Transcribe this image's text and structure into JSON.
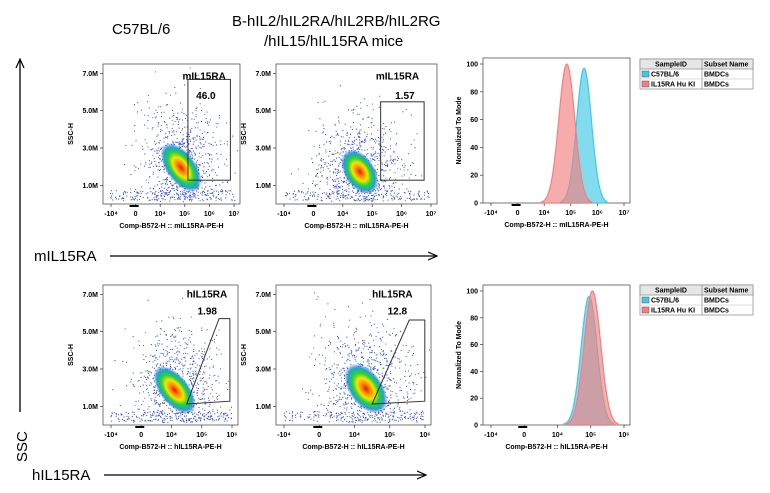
{
  "header": {
    "strain_left": "C57BL/6",
    "strain_right_line1": "B-hIL2/hIL2RA/hIL2RB/hIL2RG",
    "strain_right_line2": "/hIL15/hIL15RA mice"
  },
  "axes": {
    "row1_arrow_label": "mIL15RA",
    "row2_arrow_label": "hIL15RA",
    "vertical_arrow_label": "SSC"
  },
  "chart_data": [
    {
      "type": "scatter",
      "panel": "row1-dot-wt",
      "gate_label": "mIL15RA",
      "gate_value": "46.0",
      "xlabel": "Comp-B572-H :: mIL15RA-PE-H",
      "ylabel": "SSC-H",
      "xticks": [
        "-10⁴",
        "0",
        "10⁴",
        "10⁵",
        "10⁶",
        "10⁷"
      ],
      "yticks": [
        "1.0M",
        "3.0M",
        "5.0M",
        "7.0M"
      ],
      "ylim": [
        0,
        7.5
      ]
    },
    {
      "type": "scatter",
      "panel": "row1-dot-ki",
      "gate_label": "mIL15RA",
      "gate_value": "1.57",
      "xlabel": "Comp-B572-H :: mIL15RA-PE-H",
      "ylabel": "SSC-H",
      "xticks": [
        "-10⁴",
        "0",
        "10⁴",
        "10⁵",
        "10⁶",
        "10⁷"
      ],
      "yticks": [
        "1.0M",
        "3.0M",
        "5.0M",
        "7.0M"
      ],
      "ylim": [
        0,
        7.5
      ]
    },
    {
      "type": "area",
      "panel": "row1-histogram",
      "xlabel": "Comp-B572-H :: mIL15RA-PE-H",
      "ylabel": "Normalized To Mode",
      "xticks": [
        "-10⁴",
        "0",
        "10⁴",
        "10⁵",
        "10⁶",
        "10⁷"
      ],
      "yticks": [
        "0",
        "20",
        "40",
        "60",
        "80",
        "100"
      ],
      "ylim": [
        0,
        100
      ],
      "series": [
        {
          "name": "C57BL/6",
          "color": "#41c8e8",
          "peak_x_decades": 5.5,
          "width": 0.28,
          "peak": 97
        },
        {
          "name": "IL15RA Hu KI",
          "color": "#f28080",
          "peak_x_decades": 4.85,
          "width": 0.3,
          "peak": 100
        }
      ],
      "legend": {
        "columns": [
          "SampleID",
          "Subset Name"
        ],
        "rows": [
          {
            "sample": "C57BL/6",
            "subset": "BMDCs",
            "color": "#41c8e8"
          },
          {
            "sample": "IL15RA Hu KI",
            "subset": "BMDCs",
            "color": "#f28080"
          }
        ]
      }
    },
    {
      "type": "scatter",
      "panel": "row2-dot-wt",
      "gate_label": "hIL15RA",
      "gate_value": "1.98",
      "xlabel": "Comp-B572-H :: hIL15RA-PE-H",
      "ylabel": "SSC-H",
      "xticks": [
        "-10⁴",
        "0",
        "10⁴",
        "10⁵",
        "10⁶"
      ],
      "yticks": [
        "1.0M",
        "3.0M",
        "5.0M",
        "7.0M"
      ],
      "ylim": [
        0,
        7.5
      ]
    },
    {
      "type": "scatter",
      "panel": "row2-dot-ki",
      "gate_label": "hIL15RA",
      "gate_value": "12.8",
      "xlabel": "Comp-B572-H :: hIL15RA-PE-H",
      "ylabel": "SSC-H",
      "xticks": [
        "-10⁴",
        "0",
        "10⁴",
        "10⁵",
        "10⁶"
      ],
      "yticks": [
        "1.0M",
        "3.0M",
        "5.0M",
        "7.0M"
      ],
      "ylim": [
        0,
        7.5
      ]
    },
    {
      "type": "area",
      "panel": "row2-histogram",
      "xlabel": "Comp-B572-H :: hIL15RA-PE-H",
      "ylabel": "Normalized To Mode",
      "xticks": [
        "-10⁴",
        "0",
        "10⁴",
        "10⁵",
        "10⁶"
      ],
      "yticks": [
        "0",
        "20",
        "40",
        "60",
        "80",
        "100"
      ],
      "ylim": [
        0,
        100
      ],
      "series": [
        {
          "name": "C57BL/6",
          "color": "#41c8e8",
          "peak_x_decades": 4.95,
          "width": 0.24,
          "peak": 96
        },
        {
          "name": "IL15RA Hu KI",
          "color": "#f28080",
          "peak_x_decades": 5.05,
          "width": 0.25,
          "peak": 100
        }
      ],
      "legend": {
        "columns": [
          "SampleID",
          "Subset Name"
        ],
        "rows": [
          {
            "sample": "C57BL/6",
            "subset": "BMDCs",
            "color": "#41c8e8"
          },
          {
            "sample": "IL15RA Hu KI",
            "subset": "BMDCs",
            "color": "#f28080"
          }
        ]
      }
    }
  ]
}
